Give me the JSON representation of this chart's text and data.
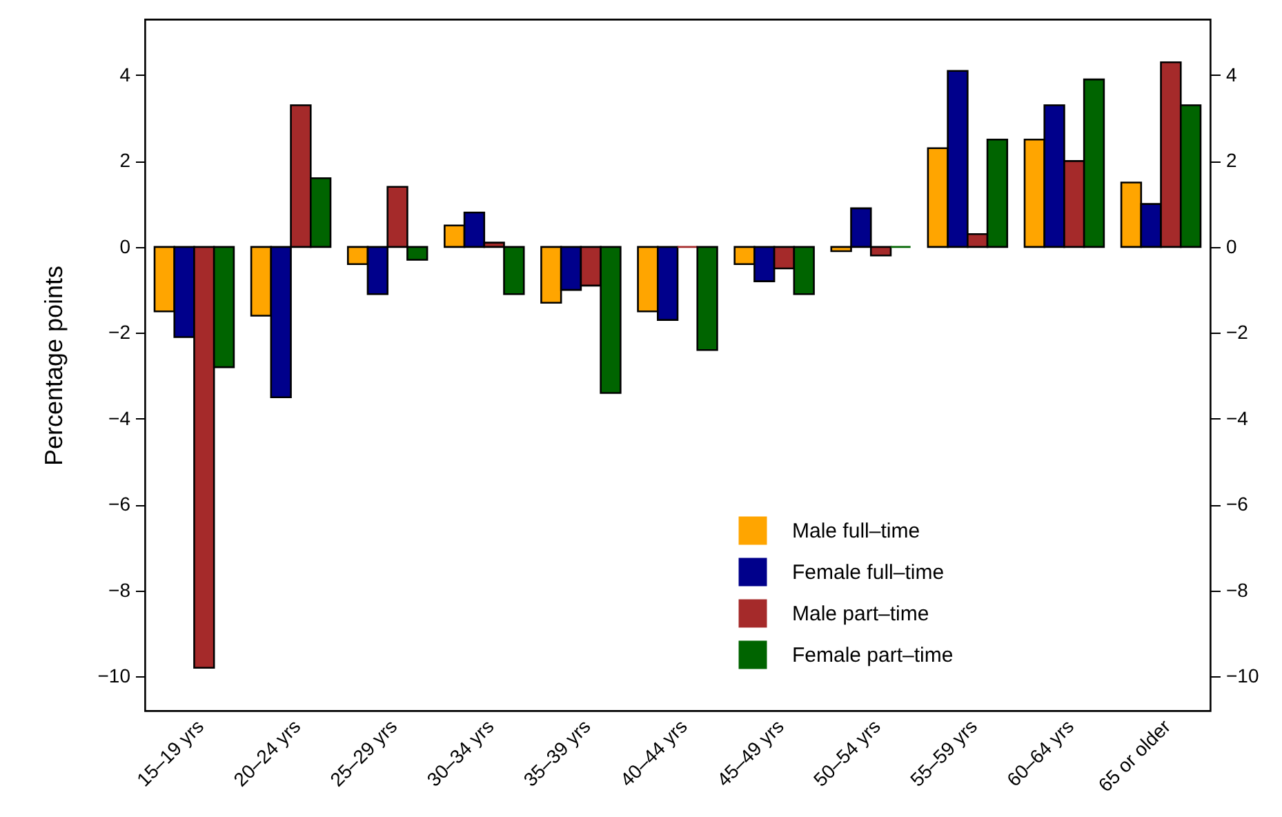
{
  "chart_data": {
    "type": "bar",
    "ylabel": "Percentage points",
    "categories": [
      "15–19 yrs",
      "20–24 yrs",
      "25–29 yrs",
      "30–34 yrs",
      "35–39 yrs",
      "40–44 yrs",
      "45–49 yrs",
      "50–54 yrs",
      "55–59 yrs",
      "60–64 yrs",
      "65 or older"
    ],
    "series": [
      {
        "name": "Male full–time",
        "color": "#ffa500",
        "values": [
          -1.5,
          -1.6,
          -0.4,
          0.5,
          -1.3,
          -1.5,
          -0.4,
          -0.1,
          2.3,
          2.5,
          1.5
        ]
      },
      {
        "name": "Female full–time",
        "color": "#00008b",
        "values": [
          -2.1,
          -3.5,
          -1.1,
          0.8,
          -1.0,
          -1.7,
          -0.8,
          0.9,
          4.1,
          3.3,
          1.0
        ]
      },
      {
        "name": "Male part–time",
        "color": "#a52a2a",
        "values": [
          -9.8,
          3.3,
          1.4,
          0.1,
          -0.9,
          0,
          -0.5,
          -0.2,
          0.3,
          2.0,
          4.3
        ]
      },
      {
        "name": "Female part–time",
        "color": "#006400",
        "values": [
          -2.8,
          1.6,
          -0.3,
          -1.1,
          -3.4,
          -2.4,
          -1.1,
          0,
          2.5,
          3.9,
          3.3
        ]
      }
    ],
    "ylim": [
      -10.8,
      5.3
    ],
    "yticks": [
      -10,
      -8,
      -6,
      -4,
      -2,
      0,
      2,
      4
    ],
    "y2lim": [
      -10.8,
      5.3
    ],
    "y2ticks": [
      -10,
      -8,
      -6,
      -4,
      -2,
      0,
      2,
      4
    ],
    "legend": "bottom right",
    "grid": false
  }
}
